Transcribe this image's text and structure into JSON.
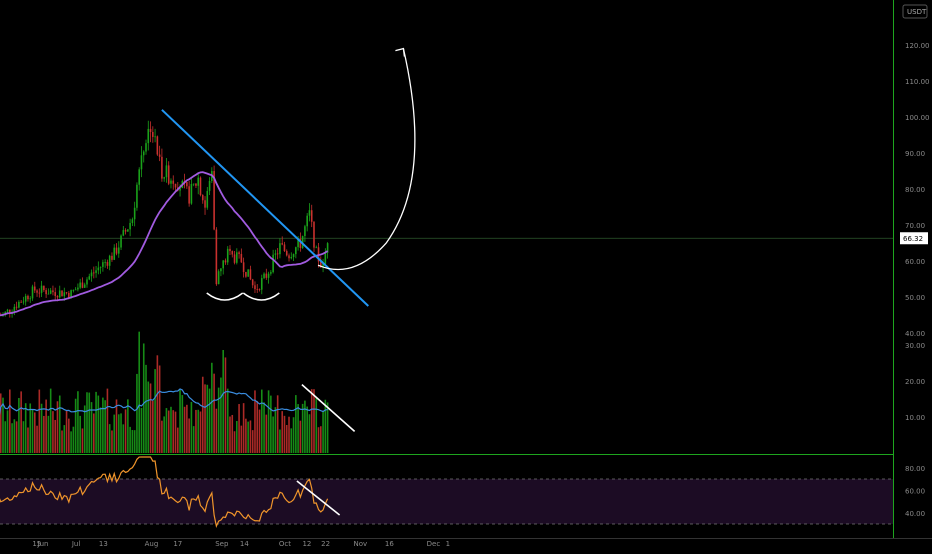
{
  "chart_data": {
    "type": "candlestick",
    "symbol_unit": "USDT",
    "last_price": "66.32",
    "y_ticks": [
      "40.00",
      "50.00",
      "60.00",
      "70.00",
      "80.00",
      "90.00",
      "100.00",
      "110.00",
      "120.00"
    ],
    "volume_ticks": [
      "10.00",
      "20.00",
      "30.00"
    ],
    "rsi_ticks": [
      "40.00",
      "60.00",
      "80.00"
    ],
    "x_ticks": [
      "Jun",
      "15",
      "Jul",
      "13",
      "Aug",
      "17",
      "Sep",
      "14",
      "Oct",
      "12",
      "22",
      "Nov",
      "16",
      "Dec",
      "1"
    ],
    "price_ylim": [
      40,
      125
    ],
    "price_anchors": {
      "dates": [
        "Jun 1",
        "Jun 15",
        "Jul 1",
        "Jul 13",
        "Jul 20",
        "Jul 28",
        "Aug 1",
        "Aug 5",
        "Aug 10",
        "Aug 17",
        "Aug 22",
        "Aug 26",
        "Aug 29",
        "Sep 1",
        "Sep 3",
        "Sep 8",
        "Sep 14",
        "Sep 20",
        "Sep 25",
        "Oct 1",
        "Oct 5",
        "Oct 10",
        "Oct 14",
        "Oct 17",
        "Oct 20",
        "Oct 22"
      ],
      "close": [
        45,
        52,
        51,
        58,
        62,
        72,
        90,
        98,
        85,
        82,
        78,
        83,
        75,
        85,
        55,
        62,
        60,
        52,
        56,
        64,
        62,
        65,
        73,
        62,
        58,
        66.32
      ]
    },
    "ma_ylim_note": "moving average line",
    "volume_ylim": [
      0,
      38
    ],
    "rsi_ylim": [
      30,
      87
    ],
    "rsi_levels": [
      70,
      30
    ],
    "annotations": {
      "trendline": "descending",
      "projection": "upward curve to ~120",
      "patterns": [
        "double bottom near 50",
        "volume divergence",
        "rsi divergence"
      ]
    },
    "colors": {
      "up": "#1aa31a",
      "down": "#c9312e",
      "ma": "#a15be0",
      "trend": "#2196f3",
      "vol_ma": "#3a8de0",
      "rsi": "#f0952b",
      "axis_line": "#1ea51e",
      "grid": "#1a1a1a",
      "price_label_bg": "#ffffff"
    }
  }
}
